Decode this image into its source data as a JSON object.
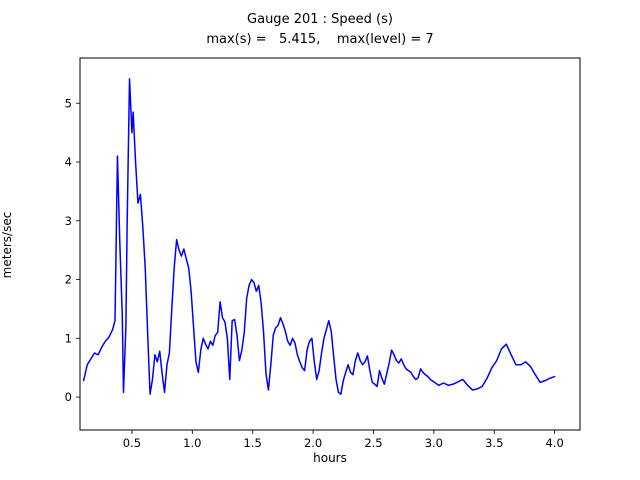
{
  "figure": {
    "title": "Gauge 201 : Speed (s)",
    "subtitle": "max(s) =   5.415,    max(level) = 7"
  },
  "chart_data": {
    "type": "line",
    "title": "Gauge 201 : Speed (s)",
    "subtitle": "max(s) =   5.415,    max(level) = 7",
    "xlabel": "hours",
    "ylabel": "meters/sec",
    "max_s": 5.415,
    "max_level": 7,
    "line_color": "#0000ff",
    "axis_color": "#000000",
    "xlim": [
      0.07,
      4.21
    ],
    "ylim": [
      -0.56,
      5.77
    ],
    "xticks": [
      "0.5",
      "1.0",
      "1.5",
      "2.0",
      "2.5",
      "3.0",
      "3.5",
      "4.0"
    ],
    "yticks": [
      "0",
      "1",
      "2",
      "3",
      "4",
      "5"
    ],
    "grid": false,
    "legend": "none",
    "points": [
      [
        0.1,
        0.28
      ],
      [
        0.13,
        0.55
      ],
      [
        0.16,
        0.65
      ],
      [
        0.19,
        0.75
      ],
      [
        0.22,
        0.72
      ],
      [
        0.25,
        0.85
      ],
      [
        0.28,
        0.95
      ],
      [
        0.31,
        1.02
      ],
      [
        0.34,
        1.15
      ],
      [
        0.36,
        1.3
      ],
      [
        0.38,
        4.1
      ],
      [
        0.4,
        2.6
      ],
      [
        0.42,
        1.4
      ],
      [
        0.43,
        0.08
      ],
      [
        0.45,
        1.2
      ],
      [
        0.46,
        2.9
      ],
      [
        0.48,
        5.415
      ],
      [
        0.5,
        4.5
      ],
      [
        0.51,
        4.85
      ],
      [
        0.53,
        4.0
      ],
      [
        0.55,
        3.3
      ],
      [
        0.57,
        3.45
      ],
      [
        0.59,
        2.9
      ],
      [
        0.61,
        2.2
      ],
      [
        0.63,
        1.1
      ],
      [
        0.65,
        0.05
      ],
      [
        0.67,
        0.3
      ],
      [
        0.69,
        0.72
      ],
      [
        0.71,
        0.6
      ],
      [
        0.73,
        0.78
      ],
      [
        0.75,
        0.4
      ],
      [
        0.77,
        0.08
      ],
      [
        0.79,
        0.55
      ],
      [
        0.81,
        0.75
      ],
      [
        0.83,
        1.5
      ],
      [
        0.85,
        2.2
      ],
      [
        0.87,
        2.68
      ],
      [
        0.89,
        2.5
      ],
      [
        0.91,
        2.4
      ],
      [
        0.93,
        2.52
      ],
      [
        0.95,
        2.35
      ],
      [
        0.97,
        2.2
      ],
      [
        0.99,
        1.8
      ],
      [
        1.01,
        1.2
      ],
      [
        1.03,
        0.6
      ],
      [
        1.05,
        0.42
      ],
      [
        1.07,
        0.8
      ],
      [
        1.09,
        1.0
      ],
      [
        1.11,
        0.9
      ],
      [
        1.13,
        0.82
      ],
      [
        1.15,
        0.95
      ],
      [
        1.17,
        0.88
      ],
      [
        1.19,
        1.05
      ],
      [
        1.21,
        1.1
      ],
      [
        1.23,
        1.62
      ],
      [
        1.25,
        1.35
      ],
      [
        1.27,
        1.28
      ],
      [
        1.29,
        1.0
      ],
      [
        1.31,
        0.3
      ],
      [
        1.33,
        1.3
      ],
      [
        1.35,
        1.32
      ],
      [
        1.37,
        1.05
      ],
      [
        1.39,
        0.62
      ],
      [
        1.41,
        0.8
      ],
      [
        1.43,
        1.1
      ],
      [
        1.45,
        1.68
      ],
      [
        1.47,
        1.9
      ],
      [
        1.49,
        2.0
      ],
      [
        1.51,
        1.95
      ],
      [
        1.53,
        1.8
      ],
      [
        1.55,
        1.9
      ],
      [
        1.57,
        1.6
      ],
      [
        1.59,
        1.1
      ],
      [
        1.61,
        0.4
      ],
      [
        1.63,
        0.12
      ],
      [
        1.65,
        0.55
      ],
      [
        1.67,
        1.05
      ],
      [
        1.69,
        1.18
      ],
      [
        1.71,
        1.22
      ],
      [
        1.73,
        1.35
      ],
      [
        1.75,
        1.25
      ],
      [
        1.77,
        1.12
      ],
      [
        1.79,
        0.95
      ],
      [
        1.81,
        0.88
      ],
      [
        1.83,
        1.0
      ],
      [
        1.85,
        0.92
      ],
      [
        1.87,
        0.72
      ],
      [
        1.89,
        0.6
      ],
      [
        1.91,
        0.5
      ],
      [
        1.93,
        0.45
      ],
      [
        1.95,
        0.8
      ],
      [
        1.97,
        0.95
      ],
      [
        1.99,
        1.0
      ],
      [
        2.01,
        0.6
      ],
      [
        2.03,
        0.3
      ],
      [
        2.05,
        0.45
      ],
      [
        2.07,
        0.75
      ],
      [
        2.09,
        1.0
      ],
      [
        2.11,
        1.15
      ],
      [
        2.13,
        1.3
      ],
      [
        2.15,
        1.12
      ],
      [
        2.17,
        0.7
      ],
      [
        2.19,
        0.3
      ],
      [
        2.21,
        0.08
      ],
      [
        2.23,
        0.05
      ],
      [
        2.25,
        0.28
      ],
      [
        2.27,
        0.42
      ],
      [
        2.29,
        0.55
      ],
      [
        2.31,
        0.42
      ],
      [
        2.33,
        0.38
      ],
      [
        2.35,
        0.62
      ],
      [
        2.37,
        0.75
      ],
      [
        2.39,
        0.62
      ],
      [
        2.41,
        0.55
      ],
      [
        2.43,
        0.6
      ],
      [
        2.45,
        0.7
      ],
      [
        2.47,
        0.45
      ],
      [
        2.49,
        0.25
      ],
      [
        2.51,
        0.22
      ],
      [
        2.53,
        0.18
      ],
      [
        2.55,
        0.45
      ],
      [
        2.57,
        0.32
      ],
      [
        2.59,
        0.22
      ],
      [
        2.61,
        0.4
      ],
      [
        2.63,
        0.58
      ],
      [
        2.65,
        0.8
      ],
      [
        2.67,
        0.72
      ],
      [
        2.69,
        0.62
      ],
      [
        2.71,
        0.58
      ],
      [
        2.73,
        0.65
      ],
      [
        2.75,
        0.55
      ],
      [
        2.77,
        0.48
      ],
      [
        2.79,
        0.45
      ],
      [
        2.81,
        0.42
      ],
      [
        2.83,
        0.35
      ],
      [
        2.85,
        0.3
      ],
      [
        2.87,
        0.33
      ],
      [
        2.89,
        0.48
      ],
      [
        2.91,
        0.42
      ],
      [
        2.93,
        0.38
      ],
      [
        2.95,
        0.35
      ],
      [
        2.97,
        0.3
      ],
      [
        3.0,
        0.26
      ],
      [
        3.04,
        0.2
      ],
      [
        3.08,
        0.24
      ],
      [
        3.12,
        0.2
      ],
      [
        3.16,
        0.22
      ],
      [
        3.2,
        0.26
      ],
      [
        3.24,
        0.3
      ],
      [
        3.28,
        0.2
      ],
      [
        3.32,
        0.12
      ],
      [
        3.36,
        0.14
      ],
      [
        3.4,
        0.18
      ],
      [
        3.44,
        0.32
      ],
      [
        3.48,
        0.5
      ],
      [
        3.52,
        0.62
      ],
      [
        3.56,
        0.82
      ],
      [
        3.6,
        0.9
      ],
      [
        3.64,
        0.72
      ],
      [
        3.68,
        0.55
      ],
      [
        3.72,
        0.55
      ],
      [
        3.76,
        0.6
      ],
      [
        3.8,
        0.52
      ],
      [
        3.84,
        0.38
      ],
      [
        3.88,
        0.25
      ],
      [
        3.92,
        0.28
      ],
      [
        3.96,
        0.32
      ],
      [
        4.0,
        0.35
      ]
    ]
  }
}
